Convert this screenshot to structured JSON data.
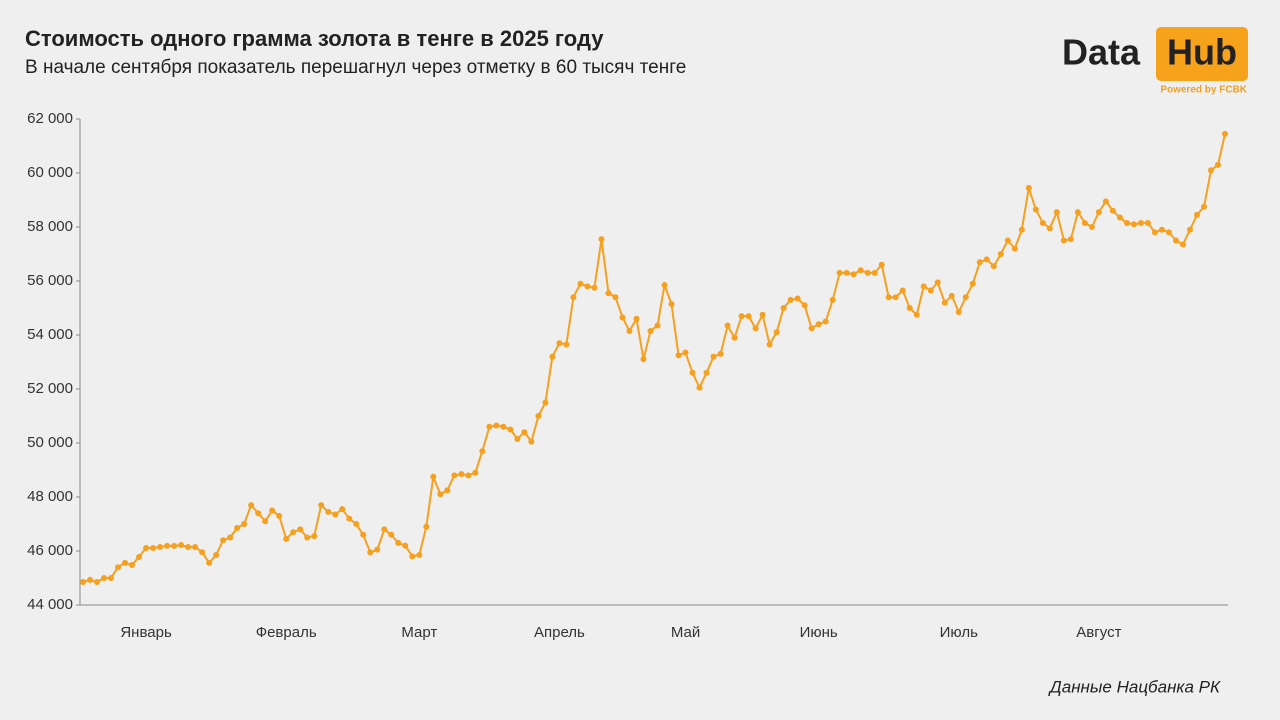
{
  "chart_data": {
    "type": "line",
    "title": "Стоимость одного грамма золота в тенге в 2025 году",
    "subtitle": "В начале сентября показатель перешагнул через отметку в 60 тысяч тенге",
    "source": "Данные Нацбанка РК",
    "logo": {
      "left": "Data",
      "right": "Hub",
      "tagline": "Powered by FCBK"
    },
    "color": "#f5a01e",
    "ylim": [
      44000,
      62000
    ],
    "yticks": [
      {
        "value": 44000,
        "label": "44 000"
      },
      {
        "value": 46000,
        "label": "46 000"
      },
      {
        "value": 48000,
        "label": "48 000"
      },
      {
        "value": 50000,
        "label": "50 000"
      },
      {
        "value": 52000,
        "label": "52 000"
      },
      {
        "value": 54000,
        "label": "54 000"
      },
      {
        "value": 56000,
        "label": "56 000"
      },
      {
        "value": 58000,
        "label": "58 000"
      },
      {
        "value": 60000,
        "label": "60 000"
      },
      {
        "value": 62000,
        "label": "62 000"
      }
    ],
    "categories": [
      null,
      null,
      null,
      null,
      null,
      null,
      null,
      null,
      null,
      "Январь",
      null,
      null,
      null,
      null,
      null,
      null,
      null,
      null,
      null,
      null,
      null,
      null,
      null,
      null,
      null,
      null,
      null,
      null,
      null,
      "Февраль",
      null,
      null,
      null,
      null,
      null,
      null,
      null,
      null,
      null,
      null,
      null,
      null,
      null,
      null,
      null,
      null,
      null,
      null,
      "Март",
      null,
      null,
      null,
      null,
      null,
      null,
      null,
      null,
      null,
      null,
      null,
      null,
      null,
      null,
      null,
      null,
      null,
      null,
      null,
      "Апрель",
      null,
      null,
      null,
      null,
      null,
      null,
      null,
      null,
      null,
      null,
      null,
      null,
      null,
      null,
      null,
      null,
      null,
      "Май",
      null,
      null,
      null,
      null,
      null,
      null,
      null,
      null,
      null,
      null,
      null,
      null,
      null,
      null,
      null,
      null,
      null,
      null,
      "Июнь",
      null,
      null,
      null,
      null,
      null,
      null,
      null,
      null,
      null,
      null,
      null,
      null,
      null,
      null,
      null,
      null,
      null,
      null,
      null,
      "Июль",
      null,
      null,
      null,
      null,
      null,
      null,
      null,
      null,
      null,
      null,
      null,
      null,
      null,
      null,
      null,
      null,
      null,
      null,
      null,
      "Август",
      null,
      null,
      null,
      null,
      null,
      null,
      null,
      null,
      null,
      null,
      null,
      null,
      null,
      null,
      null,
      null,
      null,
      null
    ],
    "values": [
      44850,
      44930,
      44850,
      45000,
      45000,
      45400,
      45560,
      45480,
      45780,
      46110,
      46110,
      46150,
      46190,
      46190,
      46220,
      46150,
      46150,
      45960,
      45560,
      45850,
      46400,
      46500,
      46850,
      47000,
      47700,
      47400,
      47100,
      47500,
      47300,
      46450,
      46700,
      46800,
      46500,
      46550,
      47700,
      47450,
      47350,
      47550,
      47200,
      47000,
      46600,
      45950,
      46050,
      46800,
      46600,
      46300,
      46200,
      45800,
      45850,
      46900,
      48750,
      48100,
      48250,
      48800,
      48850,
      48800,
      48900,
      49700,
      50600,
      50650,
      50600,
      50500,
      50150,
      50400,
      50050,
      51000,
      51500,
      53200,
      53700,
      53650,
      55400,
      55900,
      55800,
      55750,
      57550,
      55550,
      55400,
      54650,
      54150,
      54600,
      53100,
      54150,
      54350,
      55850,
      55150,
      53250,
      53350,
      52600,
      52050,
      52600,
      53200,
      53300,
      54350,
      53900,
      54700,
      54700,
      54250,
      54750,
      53650,
      54100,
      55000,
      55300,
      55350,
      55100,
      54250,
      54400,
      54500,
      55300,
      56300,
      56300,
      56250,
      56400,
      56300,
      56300,
      56600,
      55400,
      55400,
      55650,
      55000,
      54750,
      55800,
      55650,
      55950,
      55200,
      55450,
      54850,
      55400,
      55900,
      56700,
      56800,
      56550,
      57000,
      57500,
      57200,
      57900,
      59450,
      58650,
      58150,
      57950,
      58550,
      57500,
      57550,
      58550,
      58150,
      58000,
      58550,
      58950,
      58600,
      58350,
      58150,
      58100,
      58150,
      58150,
      57800,
      57900,
      57800,
      57500,
      57350,
      57900,
      58450,
      58750,
      60100,
      60300,
      61450
    ]
  }
}
